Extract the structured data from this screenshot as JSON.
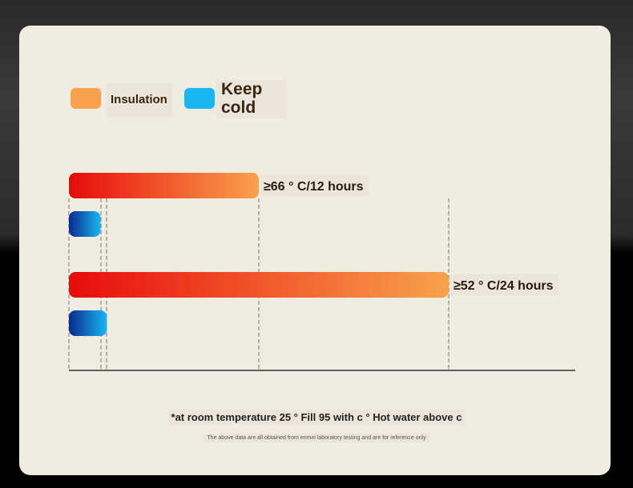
{
  "legend": [
    {
      "label": "Insulation",
      "color": "#f9a24b"
    },
    {
      "label": "Keep cold",
      "color": "#1ab6f3"
    }
  ],
  "chart_data": {
    "type": "bar",
    "orientation": "horizontal",
    "categories": [
      "12 hours",
      "24 hours"
    ],
    "series": [
      {
        "name": "Insulation",
        "values": [
          12,
          24
        ],
        "gradient": [
          "#e80b0b",
          "#f9a24b"
        ]
      },
      {
        "name": "Keep cold",
        "values": [
          2.0,
          2.4
        ],
        "gradient": [
          "#0a2a8e",
          "#1ab6f3"
        ]
      }
    ],
    "data_labels": [
      "≥66 ° C/12 hours",
      "≥52 ° C/24 hours"
    ],
    "xlim": [
      0,
      32
    ],
    "grid": false
  },
  "notes": {
    "main": "*at room temperature 25 ° Fill 95 with c ° Hot water above c",
    "sub": "The above data are all obtained from enmei laboratory testing and are for reference only"
  }
}
